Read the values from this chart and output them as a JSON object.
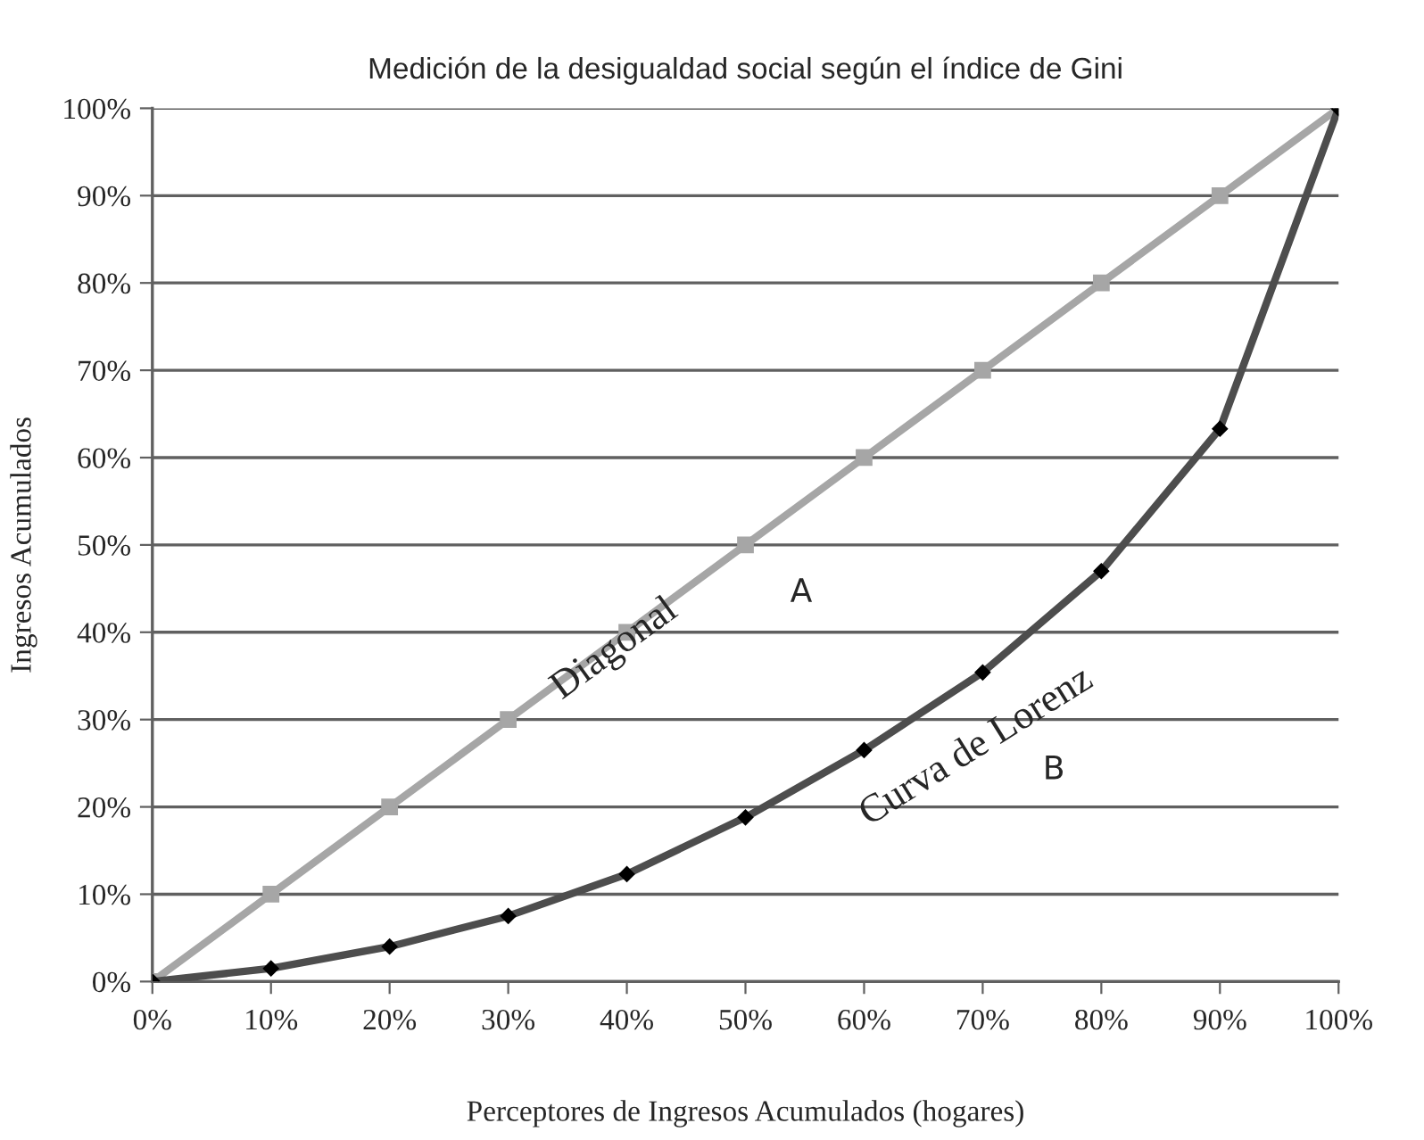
{
  "chart_data": {
    "type": "line",
    "title": "Medición de la desigualdad social según el índice de Gini",
    "xlabel": "Perceptores de Ingresos Acumulados (hogares)",
    "ylabel": "Ingresos Acumulados",
    "x": [
      0,
      10,
      20,
      30,
      40,
      50,
      60,
      70,
      80,
      90,
      100
    ],
    "series": [
      {
        "color": "#a6a6a6",
        "marker": "square",
        "values": [
          0,
          10,
          20,
          30,
          40,
          50,
          60,
          70,
          80,
          90,
          100
        ]
      },
      {
        "color": "#4d4d4d",
        "marker": "diamond",
        "values": [
          0,
          1.5,
          4.0,
          7.5,
          12.3,
          18.8,
          26.5,
          35.4,
          47.0,
          63.3,
          100
        ]
      }
    ],
    "xlim": [
      0,
      100
    ],
    "ylim": [
      0,
      100
    ],
    "xticks": [
      {
        "value": 0,
        "label": "0%"
      },
      {
        "value": 10,
        "label": "10%"
      },
      {
        "value": 20,
        "label": "20%"
      },
      {
        "value": 30,
        "label": "30%"
      },
      {
        "value": 40,
        "label": "40%"
      },
      {
        "value": 50,
        "label": "50%"
      },
      {
        "value": 60,
        "label": "60%"
      },
      {
        "value": 70,
        "label": "70%"
      },
      {
        "value": 80,
        "label": "80%"
      },
      {
        "value": 90,
        "label": "90%"
      },
      {
        "value": 100,
        "label": "100%"
      }
    ],
    "yticks": [
      {
        "value": 0,
        "label": "0%"
      },
      {
        "value": 10,
        "label": "10%"
      },
      {
        "value": 20,
        "label": "20%"
      },
      {
        "value": 30,
        "label": "30%"
      },
      {
        "value": 40,
        "label": "40%"
      },
      {
        "value": 50,
        "label": "50%"
      },
      {
        "value": 60,
        "label": "60%"
      },
      {
        "value": 70,
        "label": "70%"
      },
      {
        "value": 80,
        "label": "80%"
      },
      {
        "value": 90,
        "label": "90%"
      },
      {
        "value": 100,
        "label": "100%"
      }
    ],
    "grid": "y",
    "line_style": "solid",
    "annotations": [
      "Diagonal",
      "Curva de Lorenz",
      "A",
      "B"
    ]
  }
}
